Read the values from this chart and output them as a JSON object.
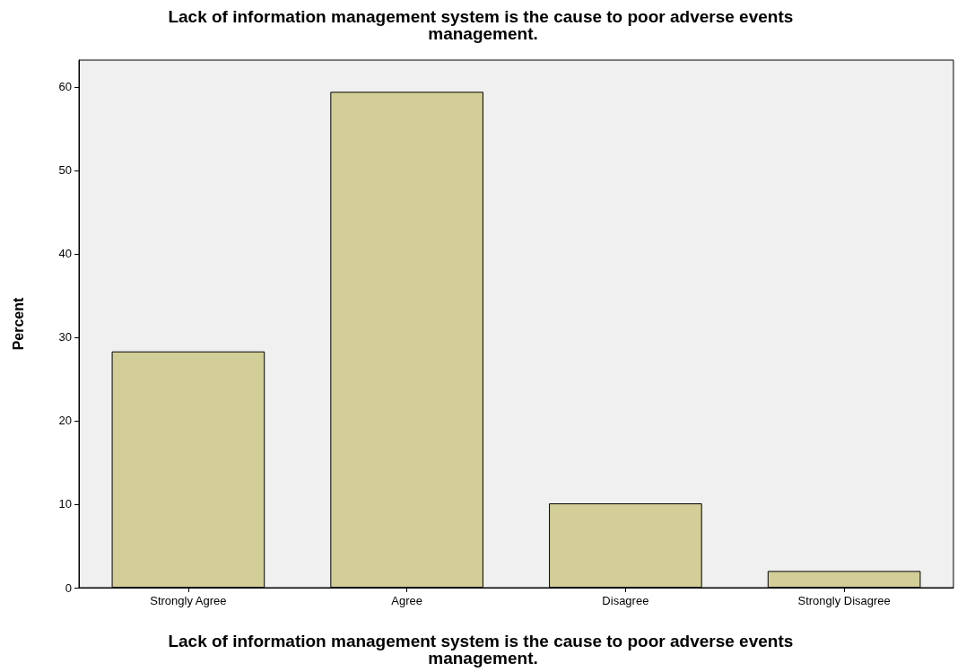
{
  "chart_data": {
    "type": "bar",
    "title": "Lack of information management system is the cause to poor adverse events management.",
    "xlabel": "Lack of information management system is the cause to poor adverse events management.",
    "ylabel": "Percent",
    "categories": [
      "Strongly Agree",
      "Agree",
      "Disagree",
      "Strongly Disagree"
    ],
    "values": [
      28.3,
      59.4,
      10.1,
      2.0
    ],
    "color": "#d3ce97",
    "ylim": [
      0,
      63.2
    ],
    "yticks": [
      0,
      10,
      20,
      30,
      40,
      50,
      60
    ],
    "grid": false
  }
}
